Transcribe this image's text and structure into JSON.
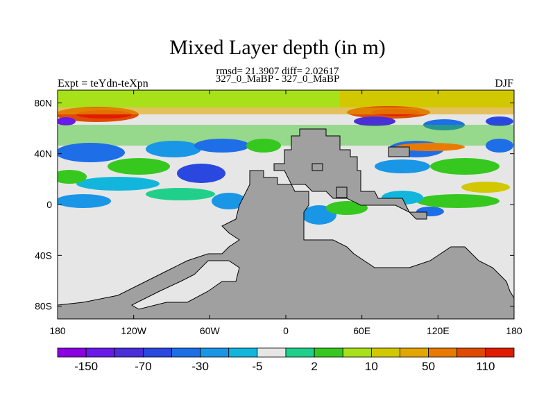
{
  "title": "Mixed Layer depth (in m)",
  "subtitle_stats": "rmsd= 21.3907 diff= 2.02617",
  "subtitle_runs": "327_0_MaBP - 327_0_MaBP",
  "left_label": "Expt = teYdn-teXpn",
  "right_label": "DJF",
  "chart_data": {
    "type": "heatmap",
    "projection": "cylindrical equidistant",
    "x_ticks": [
      "180",
      "120W",
      "60W",
      "0",
      "60E",
      "120E",
      "180"
    ],
    "y_ticks": [
      "80N",
      "40N",
      "0",
      "40S",
      "80S"
    ],
    "lon_range": [
      -180,
      180
    ],
    "lat_range": [
      -90,
      90
    ],
    "land_color": "#a0a0a0",
    "colorbar": {
      "colors": [
        "#8a00e0",
        "#6a1ae8",
        "#4a2ed8",
        "#2a48e0",
        "#1e6ee8",
        "#1a96e6",
        "#12b6dc",
        "#e6e6e6",
        "#20d08a",
        "#36c81e",
        "#a8e01a",
        "#d2c800",
        "#e2a600",
        "#e87a00",
        "#e04a00",
        "#e01c00"
      ],
      "labels": [
        "-150",
        "-70",
        "-30",
        "-5",
        "2",
        "10",
        "50",
        "110"
      ]
    }
  }
}
